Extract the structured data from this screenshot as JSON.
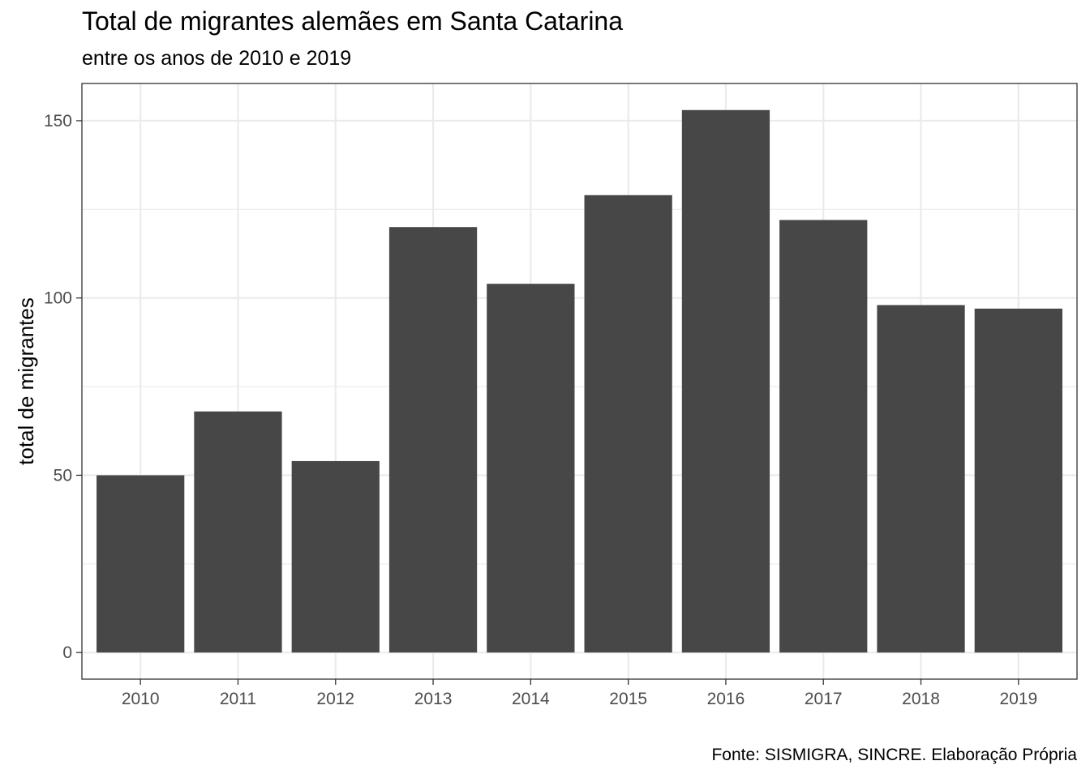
{
  "chart_data": {
    "type": "bar",
    "title": "Total de migrantes alemães em Santa Catarina",
    "subtitle": "entre os anos de 2010 e 2019",
    "caption": "Fonte: SISMIGRA, SINCRE. Elaboração Própria",
    "xlabel": "",
    "ylabel": "total de migrantes",
    "categories": [
      "2010",
      "2011",
      "2012",
      "2013",
      "2014",
      "2015",
      "2016",
      "2017",
      "2018",
      "2019"
    ],
    "values": [
      50,
      68,
      54,
      120,
      104,
      129,
      153,
      122,
      98,
      97
    ],
    "ylim": [
      -7.5,
      160.5
    ],
    "yticks": [
      0,
      50,
      100,
      150
    ],
    "ytick_labels": [
      "0",
      "50",
      "100",
      "150"
    ],
    "grid": true,
    "bar_color": "#474747",
    "panel_background": "#ffffff",
    "grid_color": "#ebebeb"
  }
}
